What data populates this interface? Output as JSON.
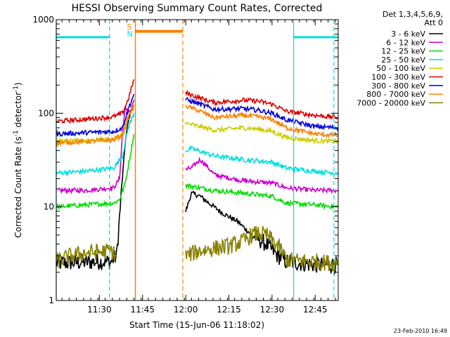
{
  "chart_data": {
    "type": "line",
    "title": "HESSI Observing Summary Count Rates, Corrected",
    "xlabel": "Start Time (15-Jun-06 11:18:02)",
    "ylabel_main": "Corrected Count Rate (s",
    "ylabel_sup1": "-1",
    "ylabel_mid": " detector",
    "ylabel_sup2": "-1",
    "ylabel_end": ")",
    "y_scale": "log",
    "ylim": [
      1,
      1000
    ],
    "xlim_minutes": [
      675,
      773
    ],
    "x_ticks": [
      {
        "minute": 690,
        "label": "11:30"
      },
      {
        "minute": 705,
        "label": "11:45"
      },
      {
        "minute": 720,
        "label": "12:00"
      },
      {
        "minute": 735,
        "label": "12:15"
      },
      {
        "minute": 750,
        "label": "12:30"
      },
      {
        "minute": 765,
        "label": "12:45"
      }
    ],
    "y_ticks": [
      {
        "value": 1,
        "label": "1"
      },
      {
        "value": 10,
        "label": "10"
      },
      {
        "value": 100,
        "label": "100"
      },
      {
        "value": 1000,
        "label": "1000"
      }
    ],
    "legend_header": [
      "Det 1,3,4,5,6,9,",
      "Att 0"
    ],
    "series": [
      {
        "name": "3 - 6 keV",
        "color": "#000000",
        "segments": [
          [
            [
              675,
              2.5
            ],
            [
              690,
              2.6
            ],
            [
              694,
              2.6
            ],
            [
              696,
              3.0
            ],
            [
              698,
              20
            ],
            [
              699,
              50
            ],
            [
              700,
              80
            ],
            [
              701,
              110
            ],
            [
              702,
              120
            ]
          ],
          [
            [
              720,
              9
            ],
            [
              722,
              14
            ],
            [
              725,
              13
            ],
            [
              728,
              11
            ],
            [
              733,
              8.5
            ],
            [
              738,
              7
            ],
            [
              743,
              5
            ],
            [
              748,
              4
            ],
            [
              752,
              3
            ],
            [
              755,
              2.6
            ],
            [
              765,
              2.4
            ],
            [
              773,
              2.4
            ]
          ]
        ]
      },
      {
        "name": "6 - 12 keV",
        "color": "#cc00cc",
        "segments": [
          [
            [
              675,
              15
            ],
            [
              685,
              15
            ],
            [
              695,
              16
            ],
            [
              697,
              20
            ],
            [
              698,
              60
            ],
            [
              699,
              120
            ],
            [
              700,
              100
            ],
            [
              701,
              110
            ],
            [
              702,
              140
            ]
          ],
          [
            [
              720,
              25
            ],
            [
              722,
              26
            ],
            [
              725,
              32
            ],
            [
              727,
              28
            ],
            [
              730,
              22
            ],
            [
              740,
              19
            ],
            [
              750,
              18
            ],
            [
              755,
              16
            ],
            [
              765,
              15
            ],
            [
              773,
              15
            ]
          ]
        ]
      },
      {
        "name": "12 - 25 keV",
        "color": "#00dd00",
        "segments": [
          [
            [
              675,
              10
            ],
            [
              685,
              10.5
            ],
            [
              695,
              11
            ],
            [
              697,
              12
            ],
            [
              699,
              18
            ],
            [
              701,
              40
            ],
            [
              702,
              60
            ]
          ],
          [
            [
              720,
              17
            ],
            [
              725,
              16
            ],
            [
              730,
              15
            ],
            [
              740,
              14
            ],
            [
              750,
              13
            ],
            [
              755,
              11
            ],
            [
              765,
              10.5
            ],
            [
              773,
              10
            ]
          ]
        ]
      },
      {
        "name": "25 - 50 keV",
        "color": "#00dddd",
        "segments": [
          [
            [
              675,
              23
            ],
            [
              685,
              24
            ],
            [
              695,
              26
            ],
            [
              698,
              35
            ],
            [
              700,
              70
            ],
            [
              702,
              100
            ]
          ],
          [
            [
              720,
              40
            ],
            [
              722,
              42
            ],
            [
              730,
              35
            ],
            [
              740,
              32
            ],
            [
              750,
              30
            ],
            [
              755,
              26
            ],
            [
              765,
              24
            ],
            [
              773,
              23
            ]
          ]
        ]
      },
      {
        "name": "50 - 100 keV",
        "color": "#cccc00",
        "segments": [
          [
            [
              675,
              50
            ],
            [
              685,
              51
            ],
            [
              695,
              53
            ],
            [
              698,
              60
            ],
            [
              700,
              90
            ],
            [
              702,
              120
            ]
          ],
          [
            [
              720,
              78
            ],
            [
              725,
              72
            ],
            [
              730,
              66
            ],
            [
              740,
              70
            ],
            [
              745,
              68
            ],
            [
              750,
              64
            ],
            [
              755,
              55
            ],
            [
              765,
              51
            ],
            [
              773,
              50
            ]
          ]
        ]
      },
      {
        "name": "100 - 300 keV",
        "color": "#dd0000",
        "segments": [
          [
            [
              675,
              82
            ],
            [
              685,
              86
            ],
            [
              695,
              92
            ],
            [
              698,
              100
            ],
            [
              700,
              140
            ],
            [
              701,
              180
            ],
            [
              702,
              230
            ]
          ],
          [
            [
              720,
              165
            ],
            [
              725,
              145
            ],
            [
              730,
              130
            ],
            [
              740,
              138
            ],
            [
              745,
              135
            ],
            [
              750,
              125
            ],
            [
              755,
              105
            ],
            [
              765,
              95
            ],
            [
              773,
              90
            ]
          ]
        ]
      },
      {
        "name": "300 - 800 keV",
        "color": "#0000dd",
        "segments": [
          [
            [
              675,
              60
            ],
            [
              685,
              62
            ],
            [
              695,
              64
            ],
            [
              698,
              70
            ],
            [
              700,
              110
            ],
            [
              702,
              160
            ]
          ],
          [
            [
              720,
              140
            ],
            [
              725,
              125
            ],
            [
              730,
              110
            ],
            [
              740,
              112
            ],
            [
              745,
              108
            ],
            [
              750,
              100
            ],
            [
              755,
              85
            ],
            [
              765,
              72
            ],
            [
              773,
              70
            ]
          ]
        ]
      },
      {
        "name": "800 - 7000 keV",
        "color": "#ff8000",
        "segments": [
          [
            [
              675,
              48
            ],
            [
              685,
              50
            ],
            [
              695,
              52
            ],
            [
              698,
              58
            ],
            [
              700,
              90
            ],
            [
              702,
              120
            ]
          ],
          [
            [
              720,
              120
            ],
            [
              725,
              105
            ],
            [
              730,
              90
            ],
            [
              740,
              95
            ],
            [
              745,
              92
            ],
            [
              750,
              86
            ],
            [
              755,
              70
            ],
            [
              765,
              60
            ],
            [
              773,
              58
            ]
          ]
        ]
      },
      {
        "name": "7000 - 20000 keV",
        "color": "#888000",
        "segments": [
          [
            [
              675,
              2.6
            ],
            [
              680,
              3.0
            ],
            [
              685,
              3.2
            ],
            [
              690,
              3.3
            ],
            [
              694,
              3.4
            ],
            [
              696,
              3.0
            ]
          ],
          [
            [
              720,
              3.0
            ],
            [
              725,
              3.4
            ],
            [
              730,
              3.6
            ],
            [
              735,
              3.8
            ],
            [
              740,
              4.3
            ],
            [
              743,
              5.0
            ],
            [
              745,
              5.2
            ],
            [
              748,
              5.0
            ],
            [
              750,
              4.4
            ],
            [
              753,
              3.5
            ],
            [
              755,
              2.7
            ],
            [
              765,
              2.6
            ],
            [
              773,
              2.5
            ]
          ]
        ]
      }
    ],
    "overlays": {
      "night_lines": {
        "color": "#00dddd",
        "minutes": [
          675,
          693.5,
          757.5,
          771.5
        ]
      },
      "night_bars": {
        "color": "#00dddd",
        "value": 650,
        "ranges": [
          [
            675,
            693.5
          ],
          [
            757.5,
            773
          ]
        ]
      },
      "saa": {
        "color": "#ff8000",
        "value": 750,
        "start": 702.5,
        "end": 719,
        "labels": [
          "S",
          "N"
        ]
      }
    },
    "footer_date": "23-Feb-2010 16:49"
  }
}
